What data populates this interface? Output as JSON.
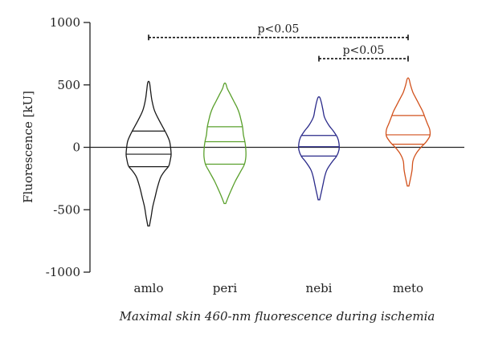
{
  "chart_data": {
    "type": "violin",
    "title": "",
    "ylabel": "Fluorescence [kU]",
    "xlabel": "Maximal skin 460-nm fluorescence during ischemia",
    "ylim": [
      -1000,
      1000
    ],
    "yticks": [
      1000,
      500,
      0,
      -500,
      -1000
    ],
    "ytick_labels": [
      "1000",
      "500",
      "0",
      "-500",
      "-1000"
    ],
    "reference_line_y": 0,
    "categories": [
      "amlo",
      "peri",
      "nebi",
      "meto"
    ],
    "colors": {
      "amlo": "#1a1a1a",
      "peri": "#5aa02c",
      "nebi": "#2a2a8a",
      "meto": "#d2521d"
    },
    "violins": [
      {
        "name": "amlo",
        "min": -630,
        "max": 520,
        "q1": -155,
        "median": -55,
        "q3": 130,
        "profile": [
          [
            -630,
            2
          ],
          [
            -560,
            6
          ],
          [
            -480,
            10
          ],
          [
            -400,
            16
          ],
          [
            -320,
            22
          ],
          [
            -240,
            30
          ],
          [
            -190,
            40
          ],
          [
            -150,
            50
          ],
          [
            -100,
            54
          ],
          [
            -60,
            56
          ],
          [
            -10,
            55
          ],
          [
            50,
            52
          ],
          [
            110,
            44
          ],
          [
            170,
            34
          ],
          [
            230,
            24
          ],
          [
            300,
            14
          ],
          [
            380,
            8
          ],
          [
            450,
            5
          ],
          [
            520,
            2
          ]
        ]
      },
      {
        "name": "peri",
        "min": -450,
        "max": 510,
        "q1": -135,
        "median": 45,
        "q3": 165,
        "profile": [
          [
            -450,
            2
          ],
          [
            -400,
            8
          ],
          [
            -340,
            16
          ],
          [
            -270,
            26
          ],
          [
            -200,
            38
          ],
          [
            -140,
            48
          ],
          [
            -80,
            52
          ],
          [
            -20,
            52
          ],
          [
            40,
            50
          ],
          [
            100,
            46
          ],
          [
            160,
            44
          ],
          [
            220,
            40
          ],
          [
            270,
            36
          ],
          [
            320,
            30
          ],
          [
            370,
            22
          ],
          [
            420,
            14
          ],
          [
            470,
            6
          ],
          [
            510,
            2
          ]
        ]
      },
      {
        "name": "nebi",
        "min": -420,
        "max": 400,
        "q1": -70,
        "median": 5,
        "q3": 95,
        "profile": [
          [
            -420,
            2
          ],
          [
            -360,
            6
          ],
          [
            -300,
            10
          ],
          [
            -240,
            14
          ],
          [
            -180,
            20
          ],
          [
            -120,
            32
          ],
          [
            -70,
            44
          ],
          [
            -20,
            50
          ],
          [
            30,
            50
          ],
          [
            80,
            46
          ],
          [
            130,
            36
          ],
          [
            180,
            24
          ],
          [
            240,
            14
          ],
          [
            300,
            10
          ],
          [
            360,
            6
          ],
          [
            400,
            2
          ]
        ]
      },
      {
        "name": "meto",
        "min": -310,
        "max": 550,
        "q1": 25,
        "median": 100,
        "q3": 255,
        "profile": [
          [
            -310,
            2
          ],
          [
            -250,
            6
          ],
          [
            -180,
            10
          ],
          [
            -110,
            12
          ],
          [
            -50,
            20
          ],
          [
            0,
            32
          ],
          [
            40,
            44
          ],
          [
            90,
            54
          ],
          [
            140,
            54
          ],
          [
            190,
            48
          ],
          [
            240,
            42
          ],
          [
            290,
            36
          ],
          [
            340,
            28
          ],
          [
            390,
            20
          ],
          [
            440,
            12
          ],
          [
            500,
            6
          ],
          [
            550,
            2
          ]
        ]
      }
    ],
    "annotations": [
      {
        "label": "p<0.05",
        "from": "amlo",
        "to": "meto",
        "y": 880
      },
      {
        "label": "p<0.05",
        "from": "nebi",
        "to": "meto",
        "y": 710
      }
    ]
  }
}
